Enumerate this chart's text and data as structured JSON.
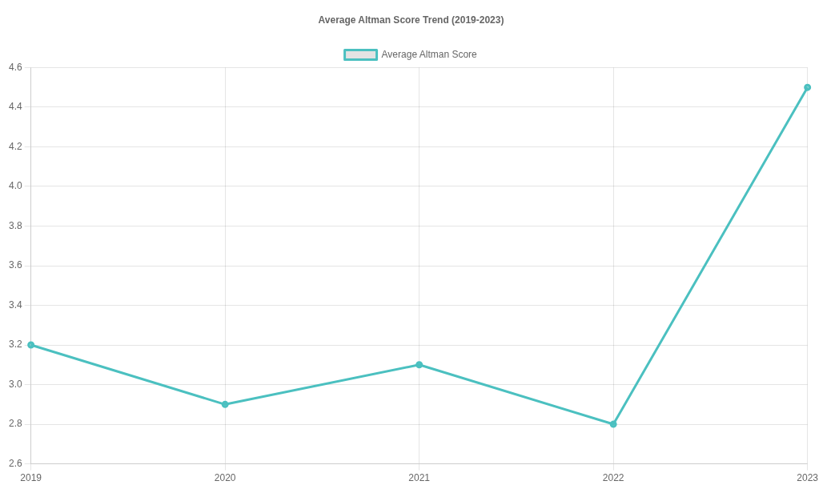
{
  "chart_data": {
    "type": "line",
    "title": "Average Altman Score Trend (2019-2023)",
    "categories": [
      "2019",
      "2020",
      "2021",
      "2022",
      "2023"
    ],
    "series": [
      {
        "name": "Average Altman Score",
        "color": "#4bc0c0",
        "values": [
          3.2,
          2.9,
          3.1,
          2.8,
          4.5
        ]
      }
    ],
    "ylim": [
      2.6,
      4.6
    ],
    "yticks": [
      2.6,
      2.8,
      {
        "value": 3,
        "label": "3.0"
      },
      3.2,
      3.4,
      3.6,
      3.8,
      {
        "value": 4,
        "label": "4.0"
      },
      4.2,
      4.4,
      4.6
    ],
    "grid": true,
    "legend": "top",
    "marker": "circle",
    "line_style": "solid"
  }
}
